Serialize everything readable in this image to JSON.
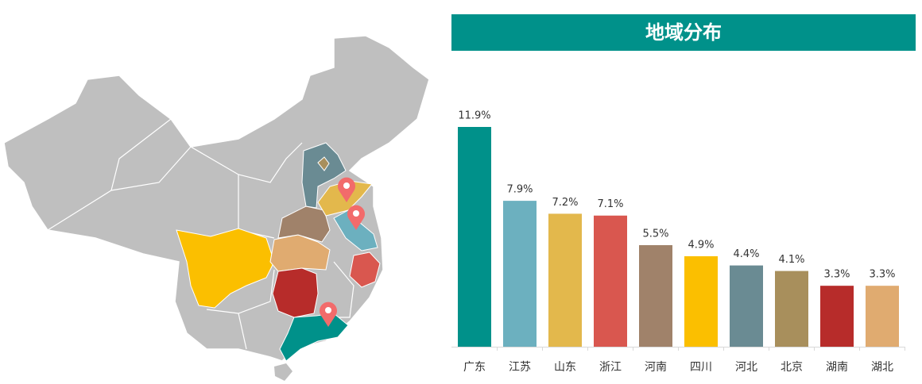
{
  "chart_data": {
    "type": "bar",
    "title": "地域分布",
    "categories": [
      "广东",
      "江苏",
      "山东",
      "浙江",
      "河南",
      "四川",
      "河北",
      "北京",
      "湖南",
      "湖北"
    ],
    "values": [
      11.9,
      7.9,
      7.2,
      7.1,
      5.5,
      4.9,
      4.4,
      4.1,
      3.3,
      3.3
    ],
    "value_labels": [
      "11.9%",
      "7.9%",
      "7.2%",
      "7.1%",
      "5.5%",
      "4.9%",
      "4.4%",
      "4.1%",
      "3.3%",
      "3.3%"
    ],
    "colors": [
      "#00918a",
      "#6cb0bf",
      "#e3b84c",
      "#d9574f",
      "#a0826a",
      "#fbbf00",
      "#6a8b93",
      "#a88f5c",
      "#b72c2a",
      "#e0ab70"
    ]
  }
}
